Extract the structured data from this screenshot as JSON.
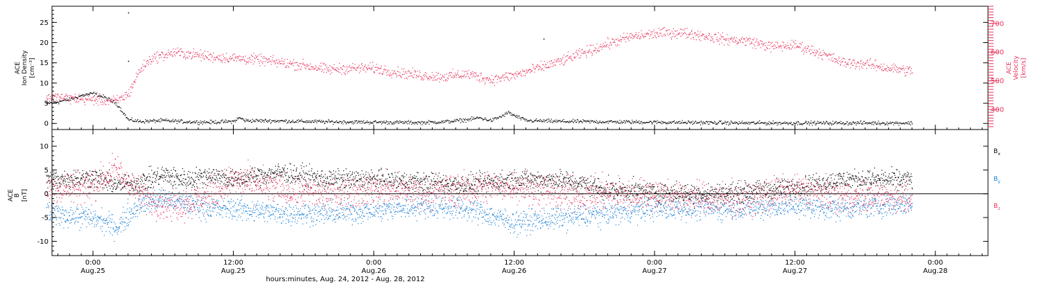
{
  "chart_data": [
    {
      "type": "scatter",
      "panel": "top",
      "ylabel_lines": [
        "ACE",
        "Ion Density",
        "[cm⁻³]"
      ],
      "y2label_lines": [
        "ACE",
        "Velocity",
        "[km/s]"
      ],
      "yticks": [
        "0",
        "5",
        "10",
        "15",
        "20",
        "25"
      ],
      "y2ticks": [
        "400",
        "500",
        "600",
        "700"
      ],
      "ylim": [
        -1.5,
        29
      ],
      "y2lim": [
        330,
        760
      ],
      "series": [
        {
          "color": "#000000",
          "points": [
            [
              "2012-08-24 20:00",
              5.0
            ],
            [
              "2012-08-24 21:00",
              5.5
            ],
            [
              "2012-08-24 22:00",
              6.0
            ],
            [
              "2012-08-24 23:00",
              7.0
            ],
            [
              "2012-08-25 00:00",
              7.5
            ],
            [
              "2012-08-25 01:00",
              6.5
            ],
            [
              "2012-08-25 02:00",
              5.0
            ],
            [
              "2012-08-25 02:30",
              3.0
            ],
            [
              "2012-08-25 03:00",
              1.0
            ],
            [
              "2012-08-25 04:00",
              0.6
            ],
            [
              "2012-08-25 06:00",
              0.8
            ],
            [
              "2012-08-25 08:00",
              0.5
            ],
            [
              "2012-08-25 10:00",
              0.4
            ],
            [
              "2012-08-25 12:00",
              0.6
            ],
            [
              "2012-08-25 12:30",
              1.5
            ],
            [
              "2012-08-25 13:00",
              0.8
            ],
            [
              "2012-08-25 16:00",
              0.7
            ],
            [
              "2012-08-25 20:00",
              0.5
            ],
            [
              "2012-08-26 00:00",
              0.4
            ],
            [
              "2012-08-26 04:00",
              0.3
            ],
            [
              "2012-08-26 06:00",
              0.5
            ],
            [
              "2012-08-26 08:00",
              1.0
            ],
            [
              "2012-08-26 09:00",
              1.5
            ],
            [
              "2012-08-26 10:00",
              0.8
            ],
            [
              "2012-08-26 11:00",
              2.0
            ],
            [
              "2012-08-26 11:30",
              2.8
            ],
            [
              "2012-08-26 12:00",
              2.0
            ],
            [
              "2012-08-26 13:00",
              0.8
            ],
            [
              "2012-08-26 16:00",
              0.6
            ],
            [
              "2012-08-26 20:00",
              0.5
            ],
            [
              "2012-08-27 00:00",
              0.4
            ],
            [
              "2012-08-27 04:00",
              0.3
            ],
            [
              "2012-08-27 08:00",
              0.2
            ],
            [
              "2012-08-27 12:00",
              0.2
            ],
            [
              "2012-08-27 16:00",
              0.2
            ],
            [
              "2012-08-27 20:00",
              0.2
            ],
            [
              "2012-08-27 22:00",
              0.2
            ]
          ],
          "outliers": [
            [
              "2012-08-25 03:00",
              27.5
            ],
            [
              "2012-08-25 03:00",
              15.5
            ],
            [
              "2012-08-26 14:30",
              21.0
            ]
          ]
        },
        {
          "color": "#e8315a",
          "axis": "right",
          "points": [
            [
              "2012-08-24 20:00",
              445
            ],
            [
              "2012-08-24 22:00",
              440
            ],
            [
              "2012-08-25 00:00",
              435
            ],
            [
              "2012-08-25 02:00",
              430
            ],
            [
              "2012-08-25 03:00",
              455
            ],
            [
              "2012-08-25 04:00",
              540
            ],
            [
              "2012-08-25 05:00",
              580
            ],
            [
              "2012-08-25 06:00",
              590
            ],
            [
              "2012-08-25 07:00",
              600
            ],
            [
              "2012-08-25 08:00",
              595
            ],
            [
              "2012-08-25 10:00",
              585
            ],
            [
              "2012-08-25 12:00",
              580
            ],
            [
              "2012-08-25 14:00",
              575
            ],
            [
              "2012-08-25 16:00",
              565
            ],
            [
              "2012-08-25 18:00",
              555
            ],
            [
              "2012-08-25 20:00",
              540
            ],
            [
              "2012-08-25 22:00",
              545
            ],
            [
              "2012-08-26 00:00",
              545
            ],
            [
              "2012-08-26 02:00",
              530
            ],
            [
              "2012-08-26 04:00",
              520
            ],
            [
              "2012-08-26 06:00",
              515
            ],
            [
              "2012-08-26 08:00",
              525
            ],
            [
              "2012-08-26 10:00",
              505
            ],
            [
              "2012-08-26 12:00",
              520
            ],
            [
              "2012-08-26 14:00",
              545
            ],
            [
              "2012-08-26 16:00",
              570
            ],
            [
              "2012-08-26 18:00",
              600
            ],
            [
              "2012-08-26 20:00",
              630
            ],
            [
              "2012-08-26 22:00",
              655
            ],
            [
              "2012-08-27 00:00",
              665
            ],
            [
              "2012-08-27 02:00",
              670
            ],
            [
              "2012-08-27 04:00",
              660
            ],
            [
              "2012-08-27 06:00",
              645
            ],
            [
              "2012-08-27 08:00",
              640
            ],
            [
              "2012-08-27 10:00",
              620
            ],
            [
              "2012-08-27 12:00",
              625
            ],
            [
              "2012-08-27 14:00",
              600
            ],
            [
              "2012-08-27 16:00",
              565
            ],
            [
              "2012-08-27 18:00",
              560
            ],
            [
              "2012-08-27 20:00",
              545
            ],
            [
              "2012-08-27 22:00",
              535
            ]
          ]
        }
      ]
    },
    {
      "type": "scatter",
      "panel": "bottom",
      "ylabel_lines": [
        "ACE",
        "B",
        "[nT]"
      ],
      "yticks": [
        "-10",
        "-5",
        "0",
        "5",
        "10"
      ],
      "ylim": [
        -13,
        13.5
      ],
      "zero_line": true,
      "series": [
        {
          "name_base": "B",
          "name_sub": "x",
          "color": "#000000",
          "points": [
            [
              "2012-08-24 20:00",
              3
            ],
            [
              "2012-08-25 00:00",
              3.5
            ],
            [
              "2012-08-25 02:00",
              2
            ],
            [
              "2012-08-25 04:00",
              2.5
            ],
            [
              "2012-08-25 06:00",
              4
            ],
            [
              "2012-08-25 08:00",
              3
            ],
            [
              "2012-08-25 10:00",
              4
            ],
            [
              "2012-08-25 12:00",
              3
            ],
            [
              "2012-08-25 16:00",
              4.5
            ],
            [
              "2012-08-25 20:00",
              3
            ],
            [
              "2012-08-26 00:00",
              3
            ],
            [
              "2012-08-26 04:00",
              2.5
            ],
            [
              "2012-08-26 08:00",
              2
            ],
            [
              "2012-08-26 12:00",
              3
            ],
            [
              "2012-08-26 16:00",
              3
            ],
            [
              "2012-08-26 20:00",
              1
            ],
            [
              "2012-08-27 00:00",
              0.5
            ],
            [
              "2012-08-27 04:00",
              0
            ],
            [
              "2012-08-27 08:00",
              0.5
            ],
            [
              "2012-08-27 12:00",
              1.5
            ],
            [
              "2012-08-27 16:00",
              3
            ],
            [
              "2012-08-27 22:00",
              3
            ]
          ]
        },
        {
          "name_base": "B",
          "name_sub": "y",
          "color": "#1a7fd4",
          "points": [
            [
              "2012-08-24 20:00",
              -4
            ],
            [
              "2012-08-25 00:00",
              -5
            ],
            [
              "2012-08-25 02:00",
              -7
            ],
            [
              "2012-08-25 04:00",
              -2
            ],
            [
              "2012-08-25 06:00",
              -1
            ],
            [
              "2012-08-25 08:00",
              -2
            ],
            [
              "2012-08-25 10:00",
              -3
            ],
            [
              "2012-08-25 12:00",
              -3
            ],
            [
              "2012-08-25 16:00",
              -4
            ],
            [
              "2012-08-25 20:00",
              -4
            ],
            [
              "2012-08-26 00:00",
              -3.5
            ],
            [
              "2012-08-26 04:00",
              -2.5
            ],
            [
              "2012-08-26 08:00",
              -3
            ],
            [
              "2012-08-26 12:00",
              -6
            ],
            [
              "2012-08-26 16:00",
              -5
            ],
            [
              "2012-08-26 20:00",
              -4
            ],
            [
              "2012-08-27 00:00",
              -3
            ],
            [
              "2012-08-27 04:00",
              -3
            ],
            [
              "2012-08-27 08:00",
              -3
            ],
            [
              "2012-08-27 12:00",
              -2.5
            ],
            [
              "2012-08-27 16:00",
              -3
            ],
            [
              "2012-08-27 22:00",
              -2
            ]
          ]
        },
        {
          "name_base": "B",
          "name_sub": "z",
          "color": "#e8315a",
          "points": [
            [
              "2012-08-24 20:00",
              1
            ],
            [
              "2012-08-25 00:00",
              2
            ],
            [
              "2012-08-25 02:00",
              5
            ],
            [
              "2012-08-25 04:00",
              0
            ],
            [
              "2012-08-25 06:00",
              -2
            ],
            [
              "2012-08-25 08:00",
              -2
            ],
            [
              "2012-08-25 10:00",
              0
            ],
            [
              "2012-08-25 12:00",
              3
            ],
            [
              "2012-08-25 16:00",
              1
            ],
            [
              "2012-08-25 20:00",
              0
            ],
            [
              "2012-08-26 00:00",
              1
            ],
            [
              "2012-08-26 04:00",
              0.5
            ],
            [
              "2012-08-26 08:00",
              1
            ],
            [
              "2012-08-26 12:00",
              2
            ],
            [
              "2012-08-26 16:00",
              0
            ],
            [
              "2012-08-26 20:00",
              0
            ],
            [
              "2012-08-27 00:00",
              0
            ],
            [
              "2012-08-27 04:00",
              -1
            ],
            [
              "2012-08-27 08:00",
              -1
            ],
            [
              "2012-08-27 12:00",
              1
            ],
            [
              "2012-08-27 16:00",
              -0.5
            ],
            [
              "2012-08-27 22:00",
              -0.5
            ]
          ]
        }
      ]
    }
  ],
  "xaxis": {
    "range": [
      "2012-08-24 20:30",
      "2012-08-28 04:30"
    ],
    "ticks": [
      {
        "t": "2012-08-25 00:00",
        "time": "0:00",
        "date": "Aug.25"
      },
      {
        "t": "2012-08-25 12:00",
        "time": "12:00",
        "date": "Aug.25"
      },
      {
        "t": "2012-08-26 00:00",
        "time": "0:00",
        "date": "Aug.26"
      },
      {
        "t": "2012-08-26 12:00",
        "time": "12:00",
        "date": "Aug.26"
      },
      {
        "t": "2012-08-27 00:00",
        "time": "0:00",
        "date": "Aug.27"
      },
      {
        "t": "2012-08-27 12:00",
        "time": "12:00",
        "date": "Aug.27"
      },
      {
        "t": "2012-08-28 00:00",
        "time": "0:00",
        "date": "Aug.28"
      }
    ],
    "label": "hours:minutes, Aug. 24, 2012 - Aug. 28, 2012"
  }
}
